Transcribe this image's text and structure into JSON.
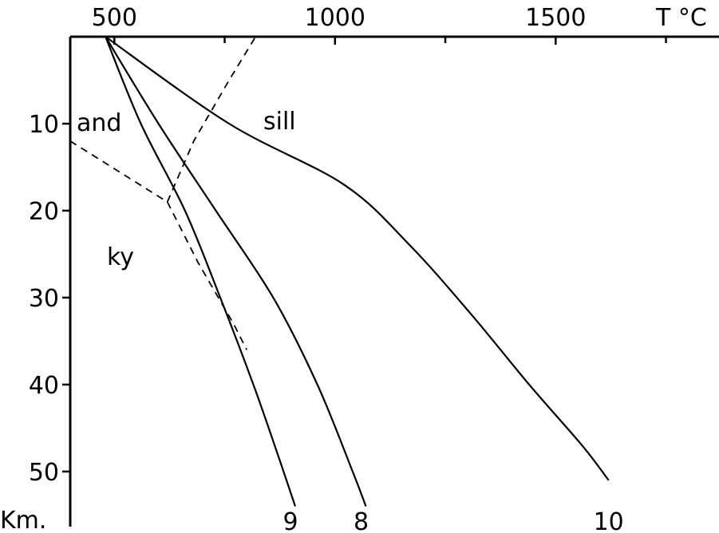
{
  "chart_data": {
    "type": "line",
    "xlabel": "T °C",
    "ylabel": "Km.",
    "x_ticks": [
      500,
      1000,
      1500
    ],
    "y_ticks": [
      10,
      20,
      30,
      40,
      50
    ],
    "xlim": [
      400,
      1900
    ],
    "ylim": [
      0,
      55
    ],
    "x_axis_position": "top",
    "y_axis_direction": "depth increasing downward",
    "grid": false,
    "series": [
      {
        "name": "9",
        "style": "solid",
        "points": [
          [
            480,
            0
          ],
          [
            560,
            10
          ],
          [
            660,
            20
          ],
          [
            740,
            30
          ],
          [
            815,
            40
          ],
          [
            870,
            48
          ],
          [
            910,
            54
          ]
        ]
      },
      {
        "name": "8",
        "style": "solid",
        "points": [
          [
            480,
            0
          ],
          [
            600,
            10
          ],
          [
            730,
            20
          ],
          [
            860,
            30
          ],
          [
            960,
            40
          ],
          [
            1040,
            50
          ],
          [
            1070,
            54
          ]
        ]
      },
      {
        "name": "10",
        "style": "solid",
        "points": [
          [
            480,
            0
          ],
          [
            760,
            10
          ],
          [
            1020,
            17
          ],
          [
            1170,
            24
          ],
          [
            1310,
            32
          ],
          [
            1440,
            40
          ],
          [
            1560,
            47
          ],
          [
            1620,
            51
          ]
        ]
      }
    ],
    "phase_boundaries": [
      {
        "label": "and",
        "style": "dashed",
        "points": [
          [
            400,
            12
          ],
          [
            620,
            19
          ]
        ]
      },
      {
        "label": "sill",
        "style": "dashed",
        "points": [
          [
            620,
            19
          ],
          [
            680,
            12
          ],
          [
            760,
            5
          ],
          [
            820,
            0
          ]
        ]
      },
      {
        "label": "ky",
        "style": "dashed",
        "points": [
          [
            620,
            19
          ],
          [
            690,
            26
          ],
          [
            770,
            33
          ],
          [
            800,
            36
          ]
        ]
      }
    ],
    "annotations": [
      "and",
      "sill",
      "ky"
    ]
  }
}
